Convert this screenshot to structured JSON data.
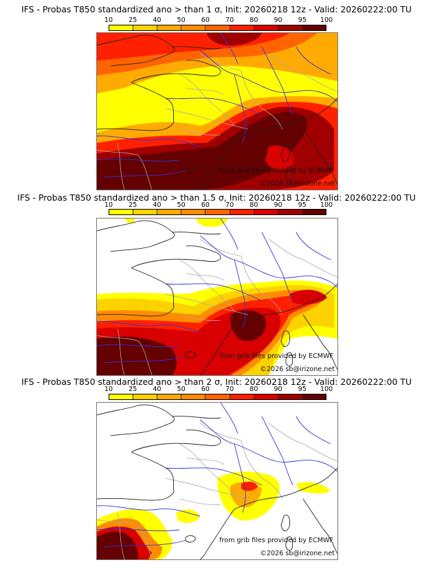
{
  "panels": [
    {
      "id": "sigma-1",
      "title": "IFS - Probas T850  standardized ano > than 1 σ, Init: 20260218 12z - Valid: 20260222:00 TU",
      "threshold_sigma": "1",
      "credits": {
        "source": "from grib files provided by ECMWF",
        "copyright": "©2026 sb@irizone.net"
      }
    },
    {
      "id": "sigma-1.5",
      "title": "IFS - Probas T850  standardized ano > than 1.5 σ, Init: 20260218 12z - Valid: 20260222:00 TU",
      "threshold_sigma": "1.5",
      "credits": {
        "source": "from grib files provided by ECMWF",
        "copyright": "©2026 sb@irizone.net"
      }
    },
    {
      "id": "sigma-2",
      "title": "IFS - Probas T850  standardized ano > than 2 σ, Init: 20260218 12z - Valid: 20260222:00 TU",
      "threshold_sigma": "2",
      "credits": {
        "source": "from grib files provided by ECMWF",
        "copyright": "©2026 sb@irizone.net"
      }
    }
  ],
  "colorbar": {
    "ticks": [
      "10",
      "25",
      "40",
      "50",
      "60",
      "70",
      "80",
      "90",
      "95",
      "100"
    ],
    "colors": [
      "#ffff00",
      "#fcd200",
      "#ffaa00",
      "#ff8c00",
      "#ff6400",
      "#ff2000",
      "#d80000",
      "#a00000",
      "#640000"
    ]
  },
  "map_colors": {
    "coastline": "#222222",
    "rivers": "#3333dd",
    "borders": "#aaaaaa",
    "frame": "#777777"
  }
}
